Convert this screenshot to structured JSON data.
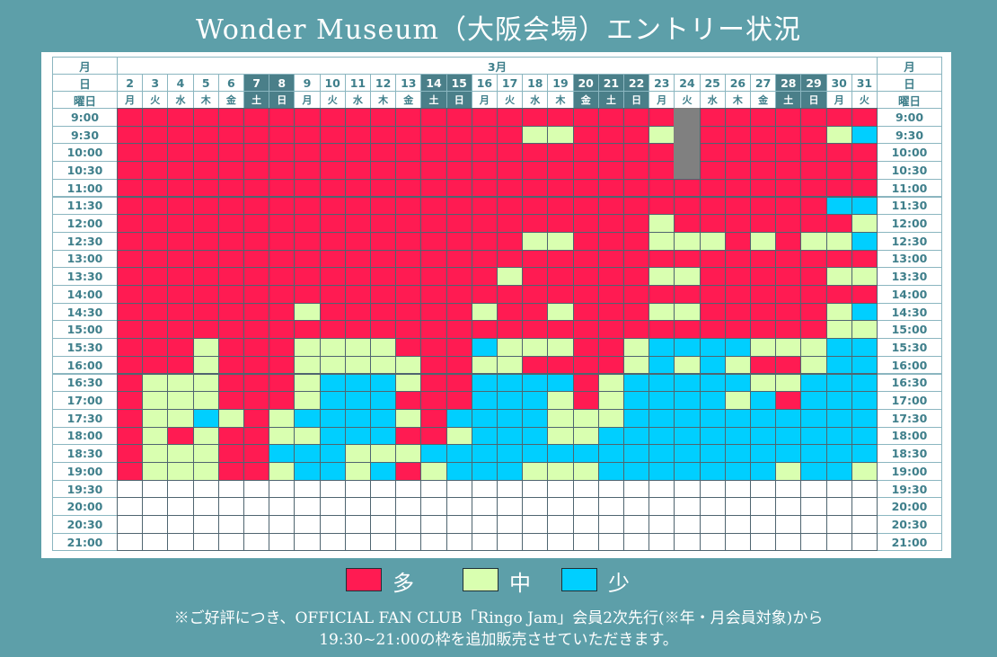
{
  "title": "Wonder Museum（大阪会場）エントリー状況",
  "colors": {
    "high": "#ff1b52",
    "medium": "#d9ffb0",
    "low": "#00cfff",
    "closed": "#808080",
    "empty": "#ffffff"
  },
  "header": {
    "month_label": "月",
    "day_label": "日",
    "weekday_label": "曜日",
    "month": "3月"
  },
  "days": [
    "2",
    "3",
    "4",
    "5",
    "6",
    "7",
    "8",
    "9",
    "10",
    "11",
    "12",
    "13",
    "14",
    "15",
    "16",
    "17",
    "18",
    "19",
    "20",
    "21",
    "22",
    "23",
    "24",
    "25",
    "26",
    "27",
    "28",
    "29",
    "30",
    "31"
  ],
  "weekdays": [
    "月",
    "火",
    "水",
    "木",
    "金",
    "土",
    "日",
    "月",
    "火",
    "水",
    "木",
    "金",
    "土",
    "日",
    "月",
    "火",
    "水",
    "木",
    "金",
    "土",
    "日",
    "月",
    "火",
    "水",
    "木",
    "金",
    "土",
    "日",
    "月",
    "火"
  ],
  "highlight_days": [
    "7",
    "8",
    "14",
    "15",
    "20",
    "21",
    "22",
    "28",
    "29"
  ],
  "times": [
    "9:00",
    "9:30",
    "10:00",
    "10:30",
    "11:00",
    "11:30",
    "12:00",
    "12:30",
    "13:00",
    "13:30",
    "14:00",
    "14:30",
    "15:00",
    "15:30",
    "16:00",
    "16:30",
    "17:00",
    "17:30",
    "18:00",
    "18:30",
    "19:00",
    "19:30",
    "20:00",
    "20:30",
    "21:00"
  ],
  "status_key": {
    "H": "多",
    "M": "中",
    "L": "少",
    "X": "closed",
    "E": "empty"
  },
  "status_rows": [
    "HHHHHHHHHHHHHHHHHHHHHHXHHHHHHH",
    "HHHHHHHHHHHHHHHHMMHHHMXHHHHHML",
    "HHHHHHHHHHHHHHHHHHHHHHXHHHHHHH",
    "HHHHHHHHHHHHHHHHHHHHHHXHHHHHHH",
    "HHHHHHHHHHHHHHHHHHHHHHHHHHHHHH",
    "HHHHHHHHHHHHHHHHHHHHHHHHHHHHLL",
    "HHHHHHHHHHHHHHHHHHHHHMHHHHHHHM",
    "HHHHHHHHHHHHHHHHMMHHHMMMHMHMML",
    "HHHHHHHHHHHHHHHHHHHHHHHHHHHHHH",
    "HHHHHHHHHHHHHHHMHHHHHMMHHHHHMM",
    "HHHHHHHHHHHHHHHHHHHHHHHHHHHHHH",
    "HHHHHHHMHHHHHHMHHMHHHMMHHHHHML",
    "HHHHHHHHHHHHHHHHHHHHHHHHHHHHMM",
    "HHHMHHHMMMMHHHLMMMHHMLLLLMMMLL",
    "HHHMHHHMMMMMHHMMHHHHMLMLMHHMLL",
    "HMMMHHHMLLLMHHLLLLHMLLLLLMMLLL",
    "HMMMHHHMLLLHHHLLLMHMLLLLMLHLLL",
    "HMMLMHMLLLLMHLLLLMMMLLLLLLLLLL",
    "HMHMHHMMLLLHHMLLLMMLLLLLLLLLLL",
    "HMMMHHLLLMMMLLLLLLLLLLLLLLLLLL",
    "HMMMHHMLLMLHMLLLMMMLLLLLLLMLLM",
    "EEEEEEEEEEEEEEEEEEEEEEEEEEEEEE",
    "EEEEEEEEEEEEEEEEEEEEEEEEEEEEEE",
    "EEEEEEEEEEEEEEEEEEEEEEEEEEEEEE",
    "EEEEEEEEEEEEEEEEEEEEEEEEEEEEEE"
  ],
  "legend": [
    {
      "label": "多",
      "color": "#ff1b52"
    },
    {
      "label": "中",
      "color": "#d9ffb0"
    },
    {
      "label": "少",
      "color": "#00cfff"
    }
  ],
  "notes": [
    "※ご好評につき、OFFICIAL FAN CLUB「Ringo Jam」会員2次先行(※年・月会員対象)から",
    "19:30~21:00の枠を追加販売させていただきます。"
  ]
}
